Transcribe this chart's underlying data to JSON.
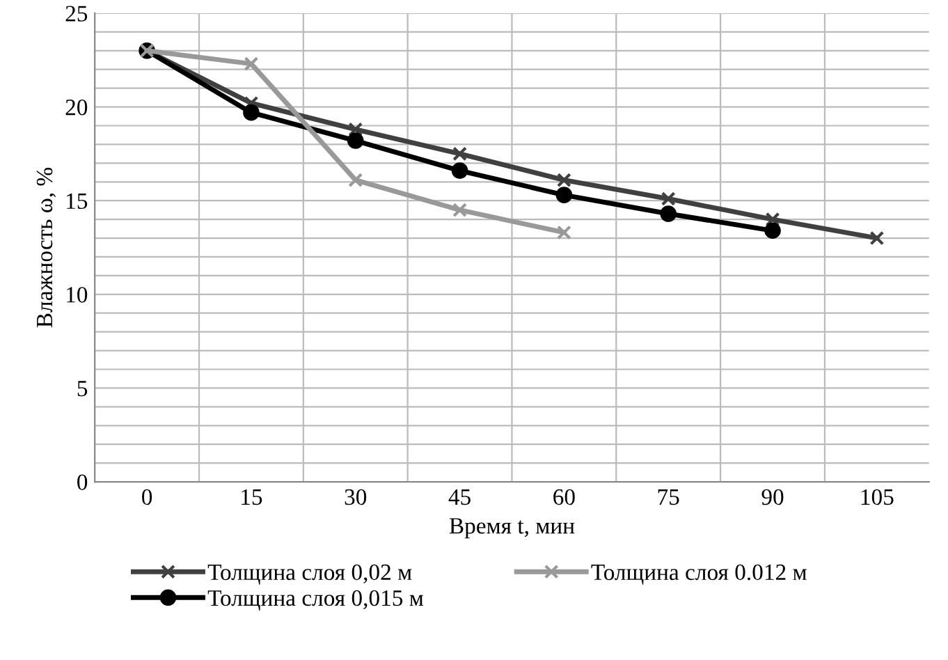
{
  "chart_data": {
    "type": "line",
    "xlabel": "Время t, мин",
    "ylabel": "Влажность ω, %",
    "categories": [
      "0",
      "15",
      "30",
      "45",
      "60",
      "75",
      "90",
      "105"
    ],
    "series": [
      {
        "name": "Толщина слоя 0,02 м",
        "color": "#404040",
        "marker": "cross",
        "values": [
          23,
          20.2,
          18.8,
          17.5,
          16.1,
          15.1,
          14,
          13
        ]
      },
      {
        "name": "Толщина слоя 0,015 м",
        "color": "#000000",
        "marker": "circle",
        "values": [
          23,
          19.7,
          18.2,
          16.6,
          15.3,
          14.3,
          13.4,
          null
        ]
      },
      {
        "name": "Толщина слоя 0.012 м",
        "color": "#999999",
        "marker": "cross",
        "values": [
          23,
          22.3,
          16.1,
          14.5,
          13.3,
          null,
          null,
          null
        ]
      }
    ],
    "ylim": [
      0,
      25
    ],
    "yticks": [
      0,
      {
        "value": 1,
        "label": null
      },
      {
        "value": 2,
        "label": null
      },
      {
        "value": 3,
        "label": null
      },
      {
        "value": 4,
        "label": null
      },
      5,
      {
        "value": 6,
        "label": null
      },
      {
        "value": 7,
        "label": null
      },
      {
        "value": 8,
        "label": null
      },
      {
        "value": 9,
        "label": null
      },
      10,
      {
        "value": 11,
        "label": null
      },
      {
        "value": 12,
        "label": null
      },
      {
        "value": 13,
        "label": null
      },
      {
        "value": 14,
        "label": null
      },
      15,
      {
        "value": 16,
        "label": null
      },
      {
        "value": 17,
        "label": null
      },
      {
        "value": 18,
        "label": null
      },
      {
        "value": 19,
        "label": null
      },
      20,
      {
        "value": 21,
        "label": null
      },
      {
        "value": 22,
        "label": null
      },
      {
        "value": 23,
        "label": null
      },
      {
        "value": 24,
        "label": null
      },
      25
    ],
    "grid": true,
    "legend": "bottom",
    "line_style": "solid"
  }
}
